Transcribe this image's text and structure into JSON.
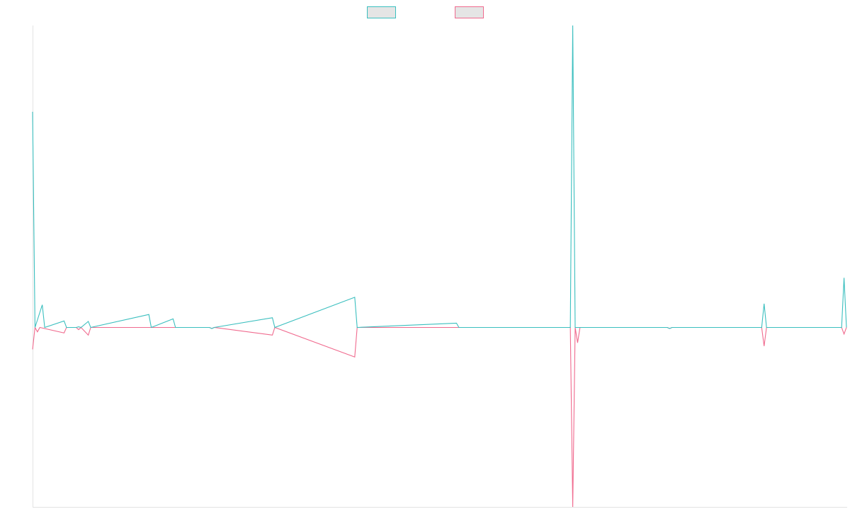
{
  "chart_data": {
    "type": "line",
    "title": "",
    "xlabel": "",
    "ylabel": "",
    "grid": false,
    "legend_position": "top-center",
    "x_count": 337,
    "ylim": [
      -1.1,
      1.1
    ],
    "series": [
      {
        "color": "#3bbfbf",
        "fill": "#e5e5e5",
        "points": [
          [
            0,
            1.0
          ],
          [
            1,
            0.0
          ],
          [
            4,
            0.105
          ],
          [
            5,
            0.0
          ],
          [
            13,
            0.03
          ],
          [
            14,
            0.0
          ],
          [
            18,
            0.0
          ],
          [
            19,
            0.003
          ],
          [
            20,
            0.0
          ],
          [
            23,
            0.028
          ],
          [
            24,
            0.0
          ],
          [
            48,
            0.06
          ],
          [
            49,
            0.0
          ],
          [
            58,
            0.04
          ],
          [
            59,
            0.0
          ],
          [
            73,
            0.0
          ],
          [
            74,
            -0.005
          ],
          [
            75,
            0.0
          ],
          [
            99,
            0.045
          ],
          [
            100,
            0.0
          ],
          [
            133,
            0.14
          ],
          [
            134,
            0.0
          ],
          [
            175,
            0.02
          ],
          [
            176,
            0.0
          ],
          [
            222,
            0.0
          ],
          [
            223,
            1.4
          ],
          [
            224,
            0.0
          ],
          [
            225,
            0.0
          ],
          [
            262,
            0.0
          ],
          [
            263,
            -0.005
          ],
          [
            264,
            0.0
          ],
          [
            301,
            0.0
          ],
          [
            302,
            0.11
          ],
          [
            303,
            0.0
          ],
          [
            334,
            0.0
          ],
          [
            335,
            0.23
          ],
          [
            336,
            0.0
          ]
        ]
      },
      {
        "color": "#f06a8e",
        "fill": "#e5e5e5",
        "points": [
          [
            0,
            -0.1
          ],
          [
            1,
            0.0
          ],
          [
            2,
            -0.02
          ],
          [
            3,
            0.0
          ],
          [
            13,
            -0.025
          ],
          [
            14,
            0.0
          ],
          [
            18,
            0.0
          ],
          [
            19,
            -0.01
          ],
          [
            20,
            0.0
          ],
          [
            23,
            -0.035
          ],
          [
            24,
            0.0
          ],
          [
            73,
            0.0
          ],
          [
            74,
            -0.005
          ],
          [
            75,
            0.0
          ],
          [
            99,
            -0.035
          ],
          [
            100,
            0.0
          ],
          [
            133,
            -0.135
          ],
          [
            134,
            0.0
          ],
          [
            222,
            0.0
          ],
          [
            223,
            -0.82
          ],
          [
            224,
            0.0
          ],
          [
            225,
            -0.07
          ],
          [
            226,
            0.0
          ],
          [
            262,
            0.0
          ],
          [
            263,
            -0.005
          ],
          [
            264,
            0.0
          ],
          [
            301,
            0.0
          ],
          [
            302,
            -0.085
          ],
          [
            303,
            0.0
          ],
          [
            334,
            0.0
          ],
          [
            335,
            -0.03
          ],
          [
            336,
            0.0
          ]
        ]
      }
    ]
  }
}
